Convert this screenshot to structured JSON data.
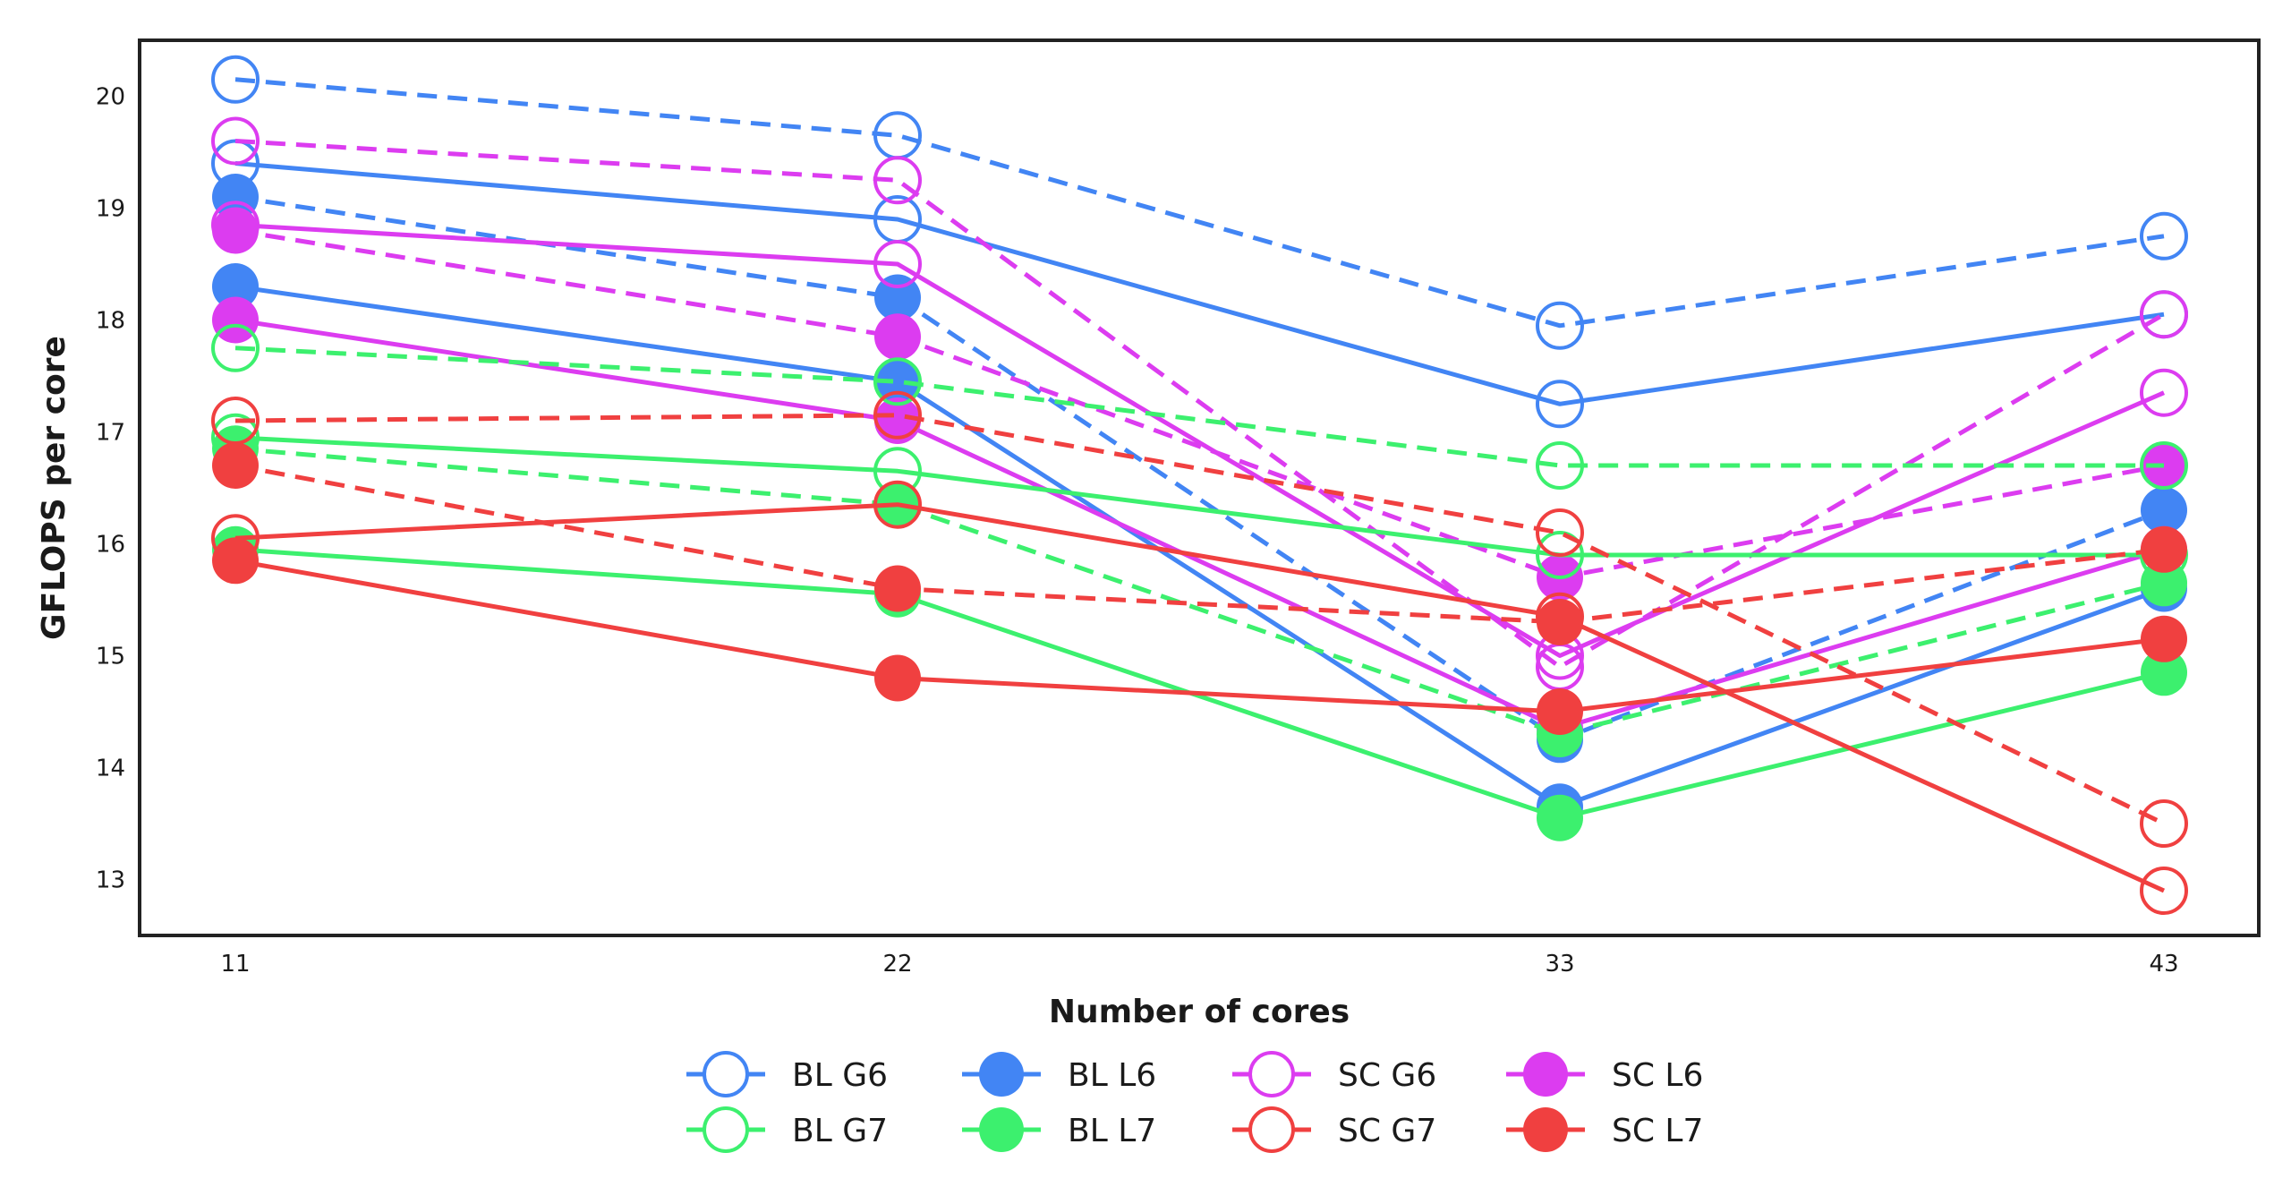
{
  "chart_data": {
    "type": "line",
    "title": "",
    "xlabel": "Number of cores",
    "ylabel": "GFLOPS per core",
    "x": [
      11,
      22,
      33,
      43
    ],
    "x_tick_labels": [
      "11",
      "22",
      "33",
      "43"
    ],
    "y_ticks": [
      13,
      14,
      15,
      16,
      17,
      18,
      19,
      20
    ],
    "y_tick_labels": [
      "13",
      "14",
      "15",
      "16",
      "17",
      "18",
      "19",
      "20"
    ],
    "ylim": [
      12.5,
      20.5
    ],
    "grid": false,
    "legend_position": "bottom-center",
    "colors": {
      "BL": "#4285f4",
      "BL_G7": "#3cf06e",
      "SC_G6": "#dc3cf0",
      "SC_L7": "#f04040"
    },
    "series": [
      {
        "name": "BL G6",
        "color": "#4285f4",
        "marker": "open",
        "lines": [
          {
            "style": "solid",
            "values": [
              19.4,
              18.9,
              17.25,
              18.05
            ]
          },
          {
            "style": "dashed",
            "values": [
              20.15,
              19.65,
              17.95,
              18.75
            ]
          }
        ]
      },
      {
        "name": "BL L6",
        "color": "#4285f4",
        "marker": "filled",
        "lines": [
          {
            "style": "solid",
            "values": [
              18.3,
              17.45,
              13.65,
              15.6
            ]
          },
          {
            "style": "dashed",
            "values": [
              19.1,
              18.2,
              14.25,
              16.3
            ]
          }
        ]
      },
      {
        "name": "SC G6",
        "color": "#dc3cf0",
        "marker": "open",
        "lines": [
          {
            "style": "solid",
            "values": [
              18.85,
              18.5,
              15.0,
              17.35
            ]
          },
          {
            "style": "dashed",
            "values": [
              19.6,
              19.25,
              14.9,
              18.05
            ]
          }
        ]
      },
      {
        "name": "SC L6",
        "color": "#dc3cf0",
        "marker": "filled",
        "lines": [
          {
            "style": "solid",
            "values": [
              18.0,
              17.1,
              14.35,
              15.95
            ]
          },
          {
            "style": "dashed",
            "values": [
              18.8,
              17.85,
              15.7,
              16.7
            ]
          }
        ]
      },
      {
        "name": "BL G7",
        "color": "#3cf06e",
        "marker": "open",
        "lines": [
          {
            "style": "solid",
            "values": [
              16.95,
              16.65,
              15.9,
              15.9
            ]
          },
          {
            "style": "dashed",
            "values": [
              17.75,
              17.45,
              16.7,
              16.7
            ]
          }
        ]
      },
      {
        "name": "BL L7",
        "color": "#3cf06e",
        "marker": "filled",
        "lines": [
          {
            "style": "solid",
            "values": [
              15.95,
              15.55,
              13.55,
              14.85
            ]
          },
          {
            "style": "dashed",
            "values": [
              16.85,
              16.35,
              14.3,
              15.65
            ]
          }
        ]
      },
      {
        "name": "SC G7",
        "color": "#f04040",
        "marker": "open",
        "lines": [
          {
            "style": "solid",
            "values": [
              16.05,
              16.35,
              15.35,
              12.9
            ]
          },
          {
            "style": "dashed",
            "values": [
              17.1,
              17.15,
              16.1,
              13.5
            ]
          }
        ]
      },
      {
        "name": "SC L7",
        "color": "#f04040",
        "marker": "filled",
        "lines": [
          {
            "style": "solid",
            "values": [
              15.85,
              14.8,
              14.5,
              15.15
            ]
          },
          {
            "style": "dashed",
            "values": [
              16.7,
              15.6,
              15.3,
              15.95
            ]
          }
        ]
      }
    ],
    "legend": [
      [
        {
          "label": "BL G6",
          "color": "#4285f4",
          "marker": "open"
        },
        {
          "label": "BL L6",
          "color": "#4285f4",
          "marker": "filled"
        },
        {
          "label": "SC G6",
          "color": "#dc3cf0",
          "marker": "open"
        },
        {
          "label": "SC L6",
          "color": "#dc3cf0",
          "marker": "filled"
        }
      ],
      [
        {
          "label": "BL G7",
          "color": "#3cf06e",
          "marker": "open"
        },
        {
          "label": "BL L7",
          "color": "#3cf06e",
          "marker": "filled"
        },
        {
          "label": "SC G7",
          "color": "#f04040",
          "marker": "open"
        },
        {
          "label": "SC L7",
          "color": "#f04040",
          "marker": "filled"
        }
      ]
    ]
  }
}
